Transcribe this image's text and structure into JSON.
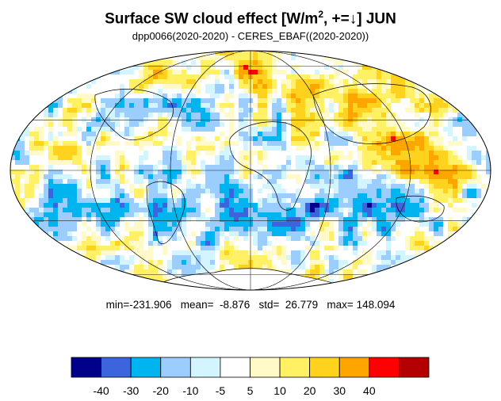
{
  "title": {
    "main": "Surface SW cloud effect [W/m",
    "sup": "2",
    "rest": ", +=↓]  JUN"
  },
  "subtitle": "dpp0066(2020-2020) - CERES_EBAF((2020-2020))",
  "stats": {
    "text": "min=-231.906   mean=  -8.876   std=  26.779   max= 148.094",
    "min": -231.906,
    "mean": -8.876,
    "std": 26.779,
    "max": 148.094
  },
  "colorbar": {
    "colors": [
      "#00008b",
      "#3c64dc",
      "#00b4f0",
      "#9bcdff",
      "#d2f5ff",
      "#ffffff",
      "#fffac8",
      "#fff064",
      "#ffd21e",
      "#ffa500",
      "#ff0000",
      "#b40000"
    ],
    "tick_labels": [
      "-40",
      "-30",
      "-20",
      "-10",
      "-5",
      "5",
      "10",
      "20",
      "30",
      "40"
    ]
  }
}
